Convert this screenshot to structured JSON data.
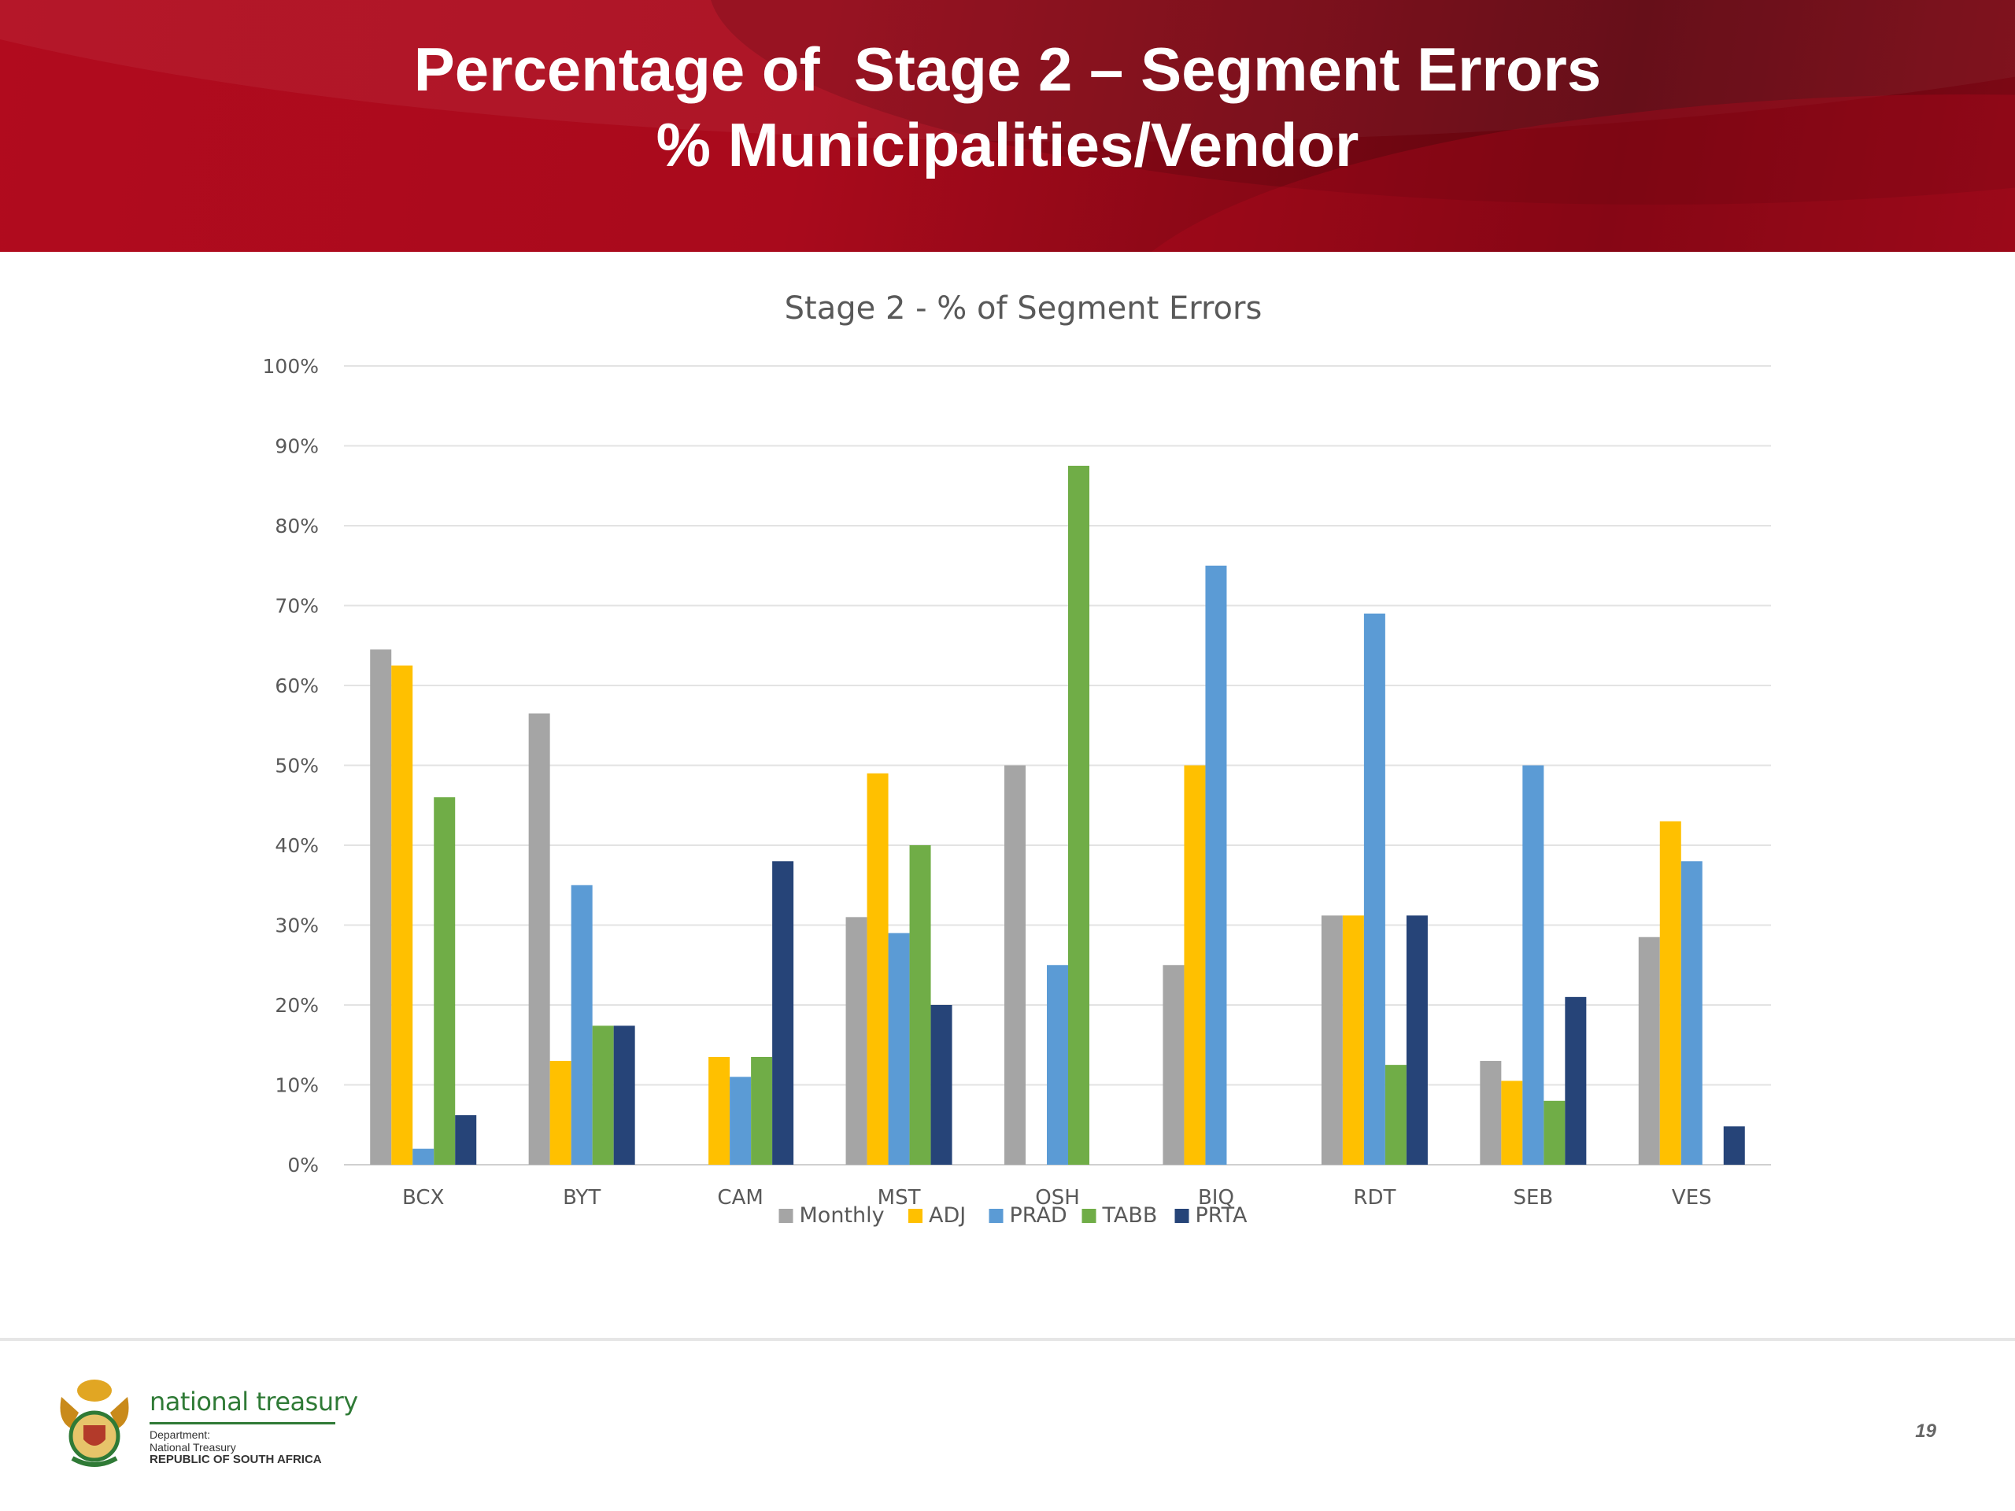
{
  "slide": {
    "title_line1": "Percentage of  Stage 2 – Segment Errors",
    "title_line2": "% Municipalities/Vendor",
    "page_number": "19"
  },
  "footer": {
    "org_name": "national treasury",
    "dept_line1": "Department:",
    "dept_line2": "National Treasury",
    "dept_line3": "REPUBLIC OF SOUTH AFRICA"
  },
  "chart_data": {
    "type": "bar",
    "title": "Stage 2 - % of Segment Errors",
    "xlabel": "",
    "ylabel": "",
    "ylim": [
      0,
      100
    ],
    "yticks": [
      0,
      10,
      20,
      30,
      40,
      50,
      60,
      70,
      80,
      90,
      100
    ],
    "ytick_suffix": "%",
    "grid": true,
    "legend_position": "bottom",
    "categories": [
      "BCX",
      "BYT",
      "CAM",
      "MST",
      "OSH",
      "BIQ",
      "RDT",
      "SEB",
      "VES"
    ],
    "series": [
      {
        "name": "Monthly",
        "color": "#a5a5a5",
        "values": [
          64.5,
          56.5,
          0,
          31,
          50,
          25,
          31.2,
          13,
          28.5
        ]
      },
      {
        "name": "ADJ",
        "color": "#ffc000",
        "values": [
          62.5,
          13,
          13.5,
          49,
          0,
          50,
          31.2,
          10.5,
          43
        ]
      },
      {
        "name": "PRAD",
        "color": "#5b9bd5",
        "values": [
          2,
          35,
          11,
          29,
          25,
          75,
          69,
          50,
          38
        ]
      },
      {
        "name": "TABB",
        "color": "#70ad47",
        "values": [
          46,
          17.4,
          13.5,
          40,
          87.5,
          0,
          12.5,
          8,
          0
        ]
      },
      {
        "name": "PRTA",
        "color": "#264478",
        "values": [
          6.2,
          17.4,
          38,
          20,
          0,
          0,
          31.2,
          21,
          4.8
        ]
      }
    ]
  }
}
